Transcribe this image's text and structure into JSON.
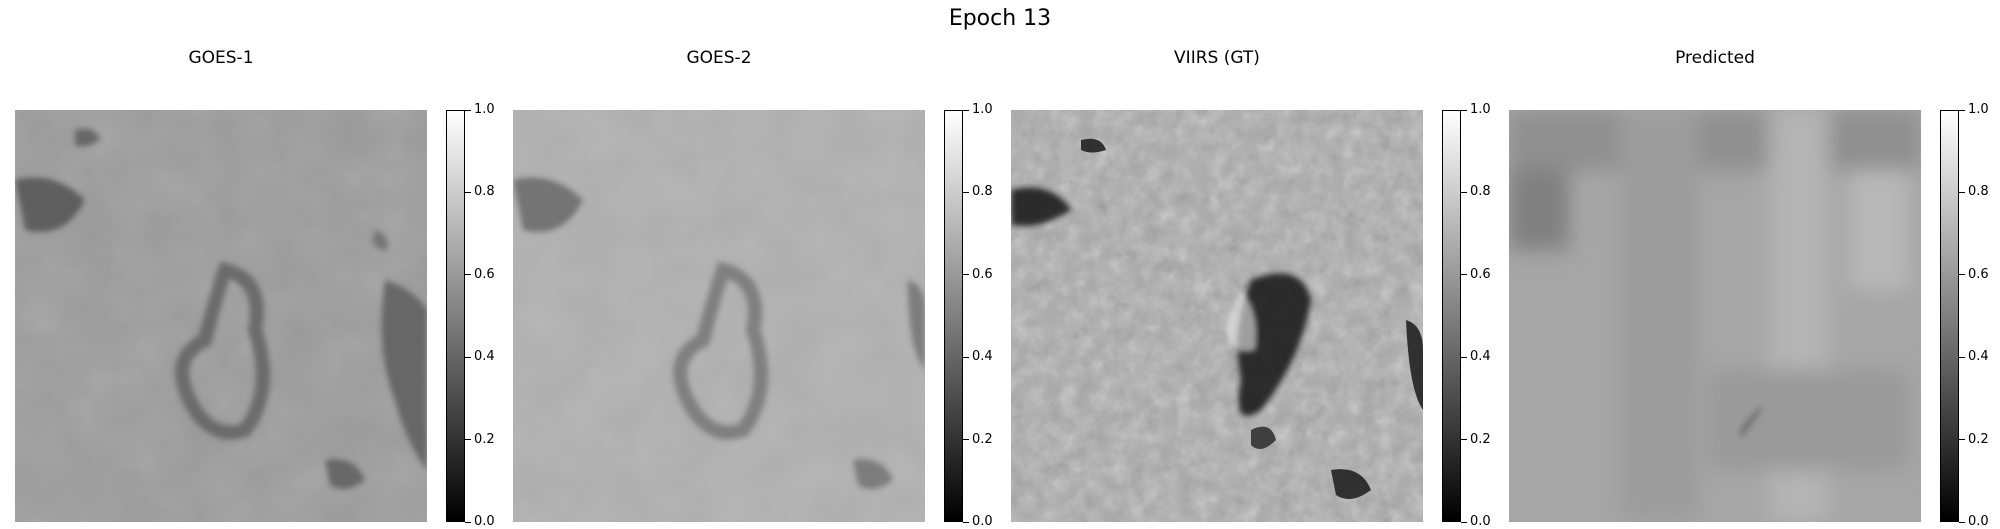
{
  "title": "Epoch 13",
  "panels": [
    {
      "title": "GOES-1",
      "image": "low-resolution grayscale satellite cloud image (pixelated)"
    },
    {
      "title": "GOES-2",
      "image": "low-resolution grayscale satellite cloud image (pixelated)"
    },
    {
      "title": "VIIRS (GT)",
      "image": "high-resolution grayscale satellite cloud image"
    },
    {
      "title": "Predicted",
      "image": "blurry grayscale predicted image"
    }
  ],
  "colorbar": {
    "colormap": "gray",
    "range": [
      0.0,
      1.0
    ],
    "ticks": [
      "0.0",
      "0.2",
      "0.4",
      "0.6",
      "0.8",
      "1.0"
    ]
  }
}
